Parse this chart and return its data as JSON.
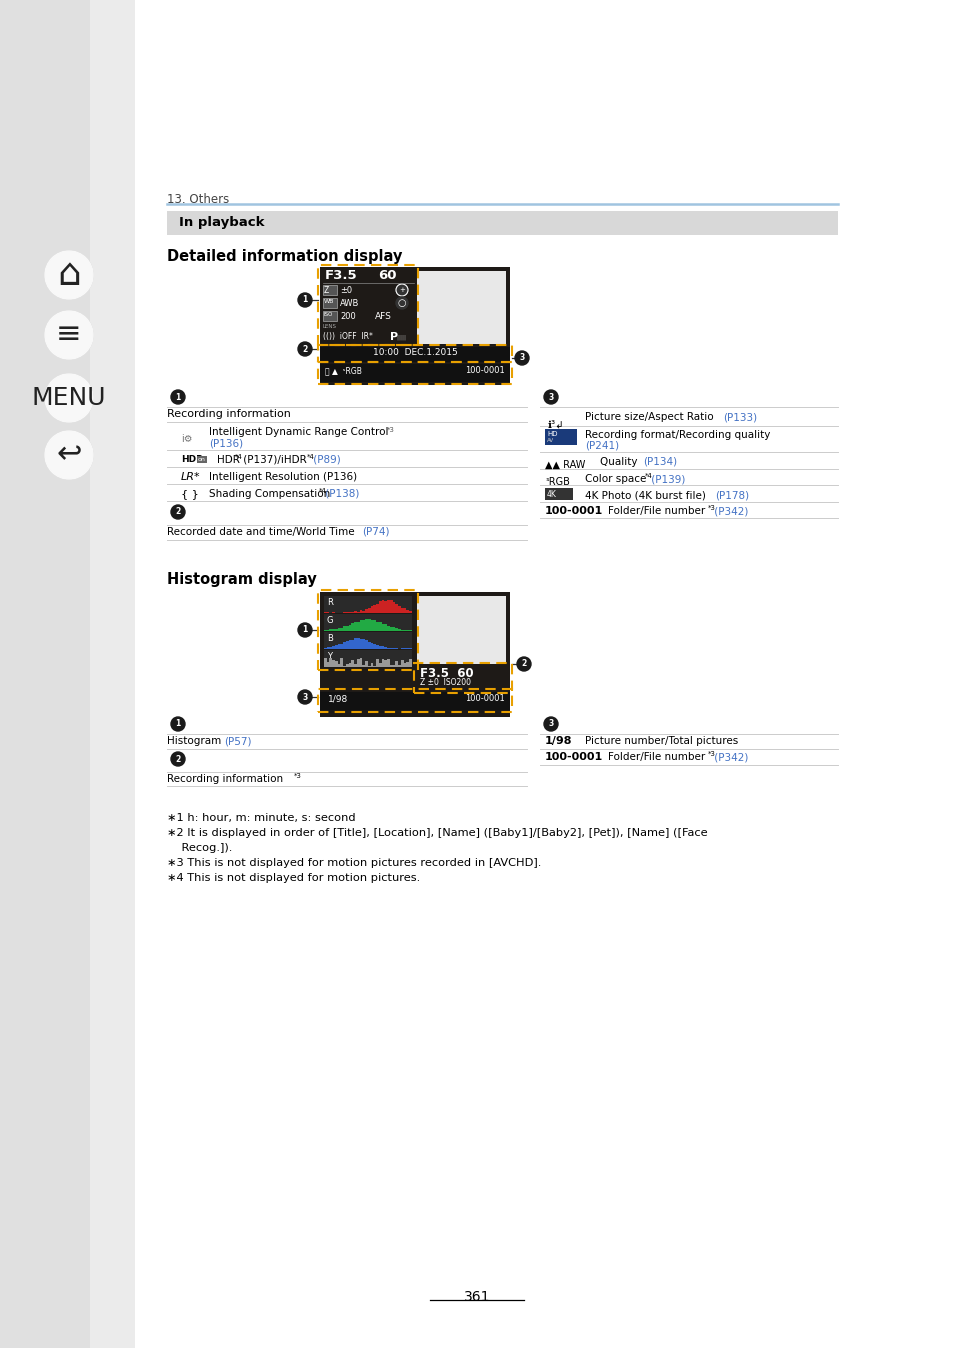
{
  "page_bg": "#ffffff",
  "sidebar_bg": "#e8e8e8",
  "sidebar_right_bg": "#f2f2f2",
  "section_header": "13. Others",
  "blue_line_color": "#a8c8e8",
  "blue_bar_text": "In playback",
  "blue_bar_bg": "#d8d8d8",
  "title1": "Detailed information display",
  "title2": "Histogram display",
  "orange_dash_color": "#e8a000",
  "link_color": "#4472c4",
  "text_color": "#000000",
  "page_number": "361",
  "cam_bg": "#1e1a17",
  "cam_dark": "#111111",
  "cam_photo_bg": "#e8e8e8",
  "footnotes": [
    "∗1 h: hour, m: minute, s: second",
    "∗2 It is displayed in order of [Title], [Location], [Name] ([Baby1]/[Baby2], [Pet]), [Name] ([Face",
    "    Recog.]).",
    "∗3 This is not displayed for motion pictures recorded in [AVCHD].",
    "∗4 This is not displayed for motion pictures."
  ]
}
